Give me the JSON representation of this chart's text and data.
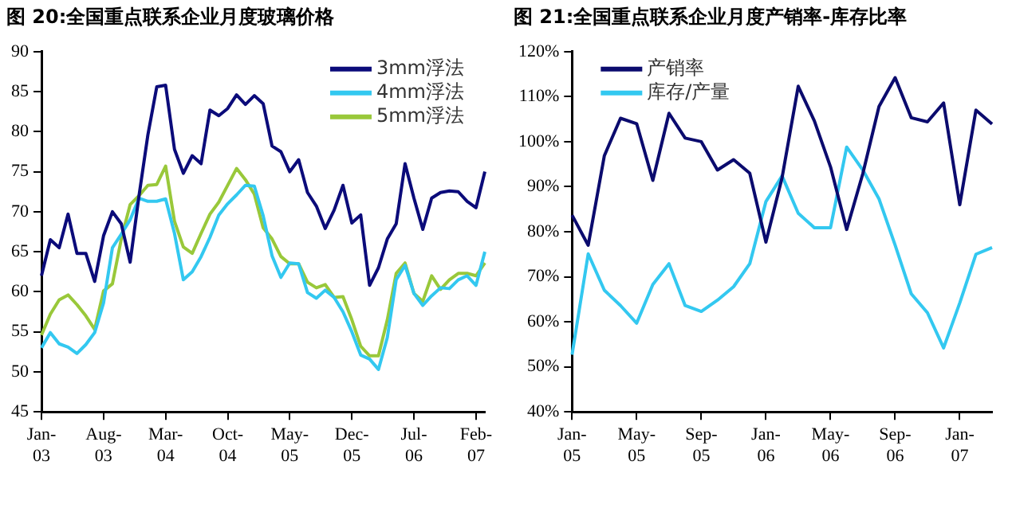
{
  "chart_data": [
    {
      "type": "line",
      "title": "图 20:全国重点联系企业月度玻璃价格",
      "categories": [
        "Jan-03",
        null,
        null,
        null,
        null,
        null,
        null,
        "Aug-03",
        null,
        null,
        null,
        null,
        null,
        null,
        "Mar-04",
        null,
        null,
        null,
        null,
        null,
        null,
        "Oct-04",
        null,
        null,
        null,
        null,
        null,
        null,
        "May-05",
        null,
        null,
        null,
        null,
        null,
        null,
        "Dec-05",
        null,
        null,
        null,
        null,
        null,
        null,
        "Jul-06",
        null,
        null,
        null,
        null,
        null,
        null,
        "Feb-07",
        null
      ],
      "series": [
        {
          "name": "3mm浮法",
          "color": "#0b0b7a",
          "values": [
            62,
            66.5,
            65.5,
            69.7,
            64.8,
            64.8,
            61.3,
            67,
            70,
            68.5,
            63.7,
            72,
            79.6,
            85.6,
            85.8,
            77.8,
            74.8,
            77,
            76,
            82.7,
            82,
            82.9,
            84.6,
            83.4,
            84.5,
            83.5,
            78.2,
            77.5,
            75,
            76.5,
            72.4,
            70.7,
            67.9,
            70.2,
            73.3,
            68.6,
            69.6,
            60.8,
            63,
            66.6,
            68.5,
            76,
            71.7,
            67.8,
            71.7,
            72.4,
            72.6,
            72.5,
            71.3,
            70.5,
            75
          ]
        },
        {
          "name": "4mm浮法",
          "color": "#33c8f0",
          "values": [
            53,
            54.9,
            53.5,
            53.1,
            52.3,
            53.4,
            54.9,
            58.6,
            65.5,
            67.2,
            69,
            71.7,
            71.3,
            71.3,
            71.6,
            67.3,
            61.5,
            62.5,
            64.4,
            66.8,
            69.6,
            71,
            72.1,
            73.3,
            73.2,
            69.5,
            64.5,
            61.8,
            63.6,
            63.5,
            59.9,
            59.2,
            60.2,
            59.3,
            57.5,
            55,
            52.1,
            51.6,
            50.3,
            54.3,
            61.5,
            63.3,
            59.8,
            58.3,
            59.5,
            60.5,
            60.4,
            61.5,
            62,
            60.8,
            65
          ]
        },
        {
          "name": "5mm浮法",
          "color": "#99c83a",
          "values": [
            54.6,
            57.2,
            59,
            59.6,
            58.4,
            57,
            55.3,
            60.1,
            61,
            66.6,
            70.9,
            72,
            73.3,
            73.4,
            75.7,
            68.8,
            65.6,
            64.8,
            67.3,
            69.7,
            71.2,
            73.3,
            75.4,
            74,
            72.2,
            68,
            66.6,
            64.4,
            63.5,
            63.5,
            61.2,
            60.5,
            60.9,
            59.3,
            59.4,
            56.5,
            53.2,
            52,
            52,
            56.5,
            62.3,
            63.6,
            59.8,
            58.8,
            62,
            60.3,
            61.5,
            62.3,
            62.3,
            62,
            63.6
          ]
        }
      ],
      "ylim": [
        45,
        90
      ],
      "yticks": [
        45,
        50,
        55,
        60,
        65,
        70,
        75,
        80,
        85,
        90
      ],
      "grid": false,
      "legend": "top right",
      "marker": "none",
      "line_style": "solid"
    },
    {
      "type": "line",
      "title": "图 21:全国重点联系企业月度产销率-库存比率",
      "categories": [
        "Jan-05",
        null,
        null,
        null,
        "May-05",
        null,
        null,
        null,
        "Sep-05",
        null,
        null,
        null,
        "Jan-06",
        null,
        null,
        null,
        "May-06",
        null,
        null,
        null,
        "Sep-06",
        null,
        null,
        null,
        "Jan-07",
        null,
        null
      ],
      "series": [
        {
          "name": "产销率",
          "color": "#0b0b6e",
          "values": [
            83.7,
            77,
            96.9,
            105.2,
            104,
            91.4,
            106.3,
            100.8,
            100,
            93.7,
            96,
            93,
            77.7,
            92,
            112.3,
            104.6,
            94.4,
            80.5,
            92.9,
            107.8,
            114.2,
            105.3,
            104.4,
            108.6,
            86,
            107,
            103.9
          ]
        },
        {
          "name": "库存/产量",
          "color": "#33c8f0",
          "values": [
            52.7,
            75.1,
            67,
            63.6,
            59.7,
            68.3,
            72.9,
            63.6,
            62.3,
            64.8,
            67.8,
            72.9,
            86.7,
            92.4,
            84.1,
            80.9,
            80.9,
            98.8,
            93.7,
            87.3,
            77,
            66.2,
            62,
            54.2,
            64.2,
            75,
            76.5
          ]
        }
      ],
      "ylim": [
        40,
        120
      ],
      "yticks": [
        {
          "value": 40,
          "label": "40%"
        },
        {
          "value": 50,
          "label": "50%"
        },
        {
          "value": 60,
          "label": "60%"
        },
        {
          "value": 70,
          "label": "70%"
        },
        {
          "value": 80,
          "label": "80%"
        },
        {
          "value": 90,
          "label": "90%"
        },
        {
          "value": 100,
          "label": "100%"
        },
        {
          "value": 110,
          "label": "110%"
        },
        {
          "value": 120,
          "label": "120%"
        }
      ],
      "grid": false,
      "legend": "top left",
      "marker": "none",
      "line_style": "solid"
    }
  ]
}
